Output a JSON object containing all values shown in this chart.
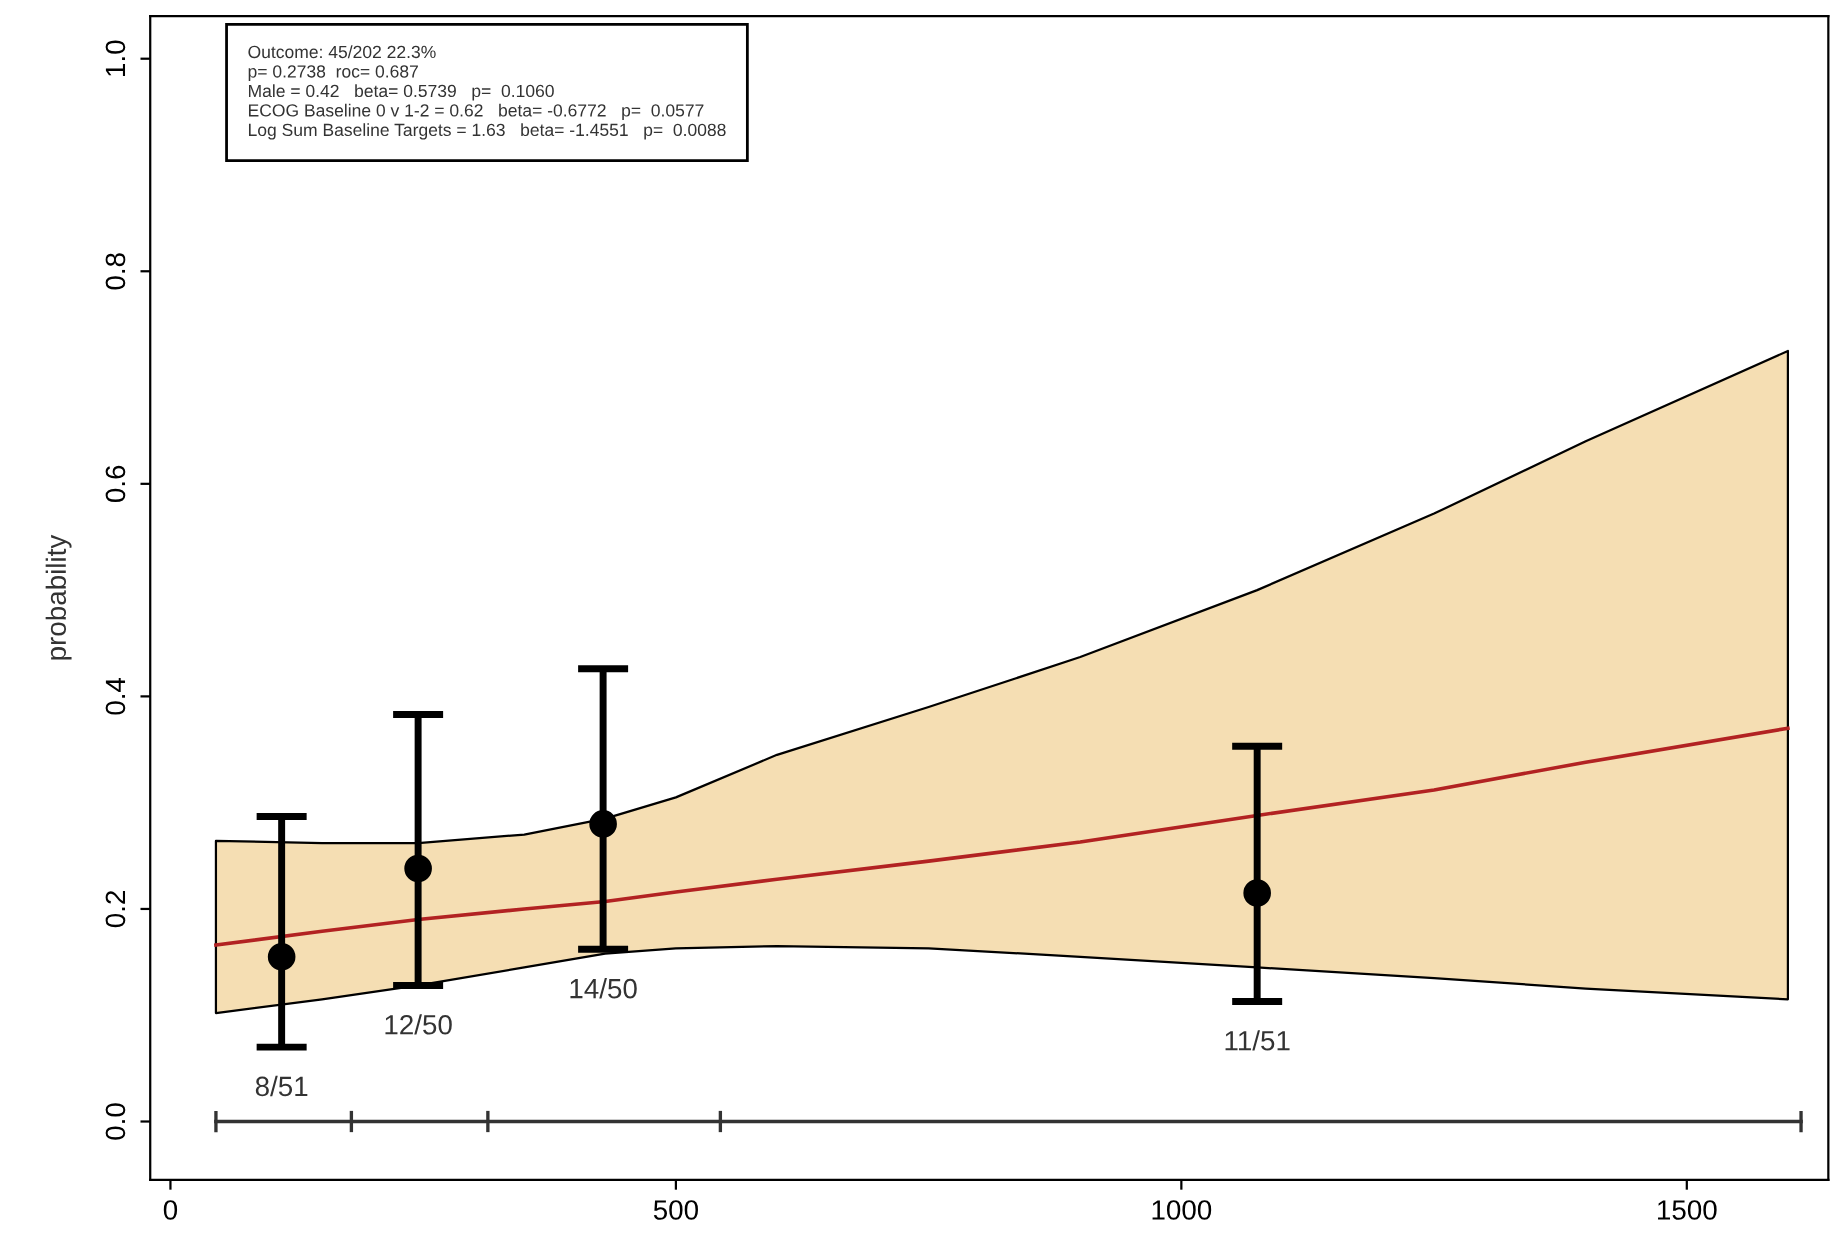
{
  "chart_data": {
    "type": "line",
    "ylabel": "probability",
    "xlim": [
      -20,
      1640
    ],
    "ylim": [
      -0.055,
      1.04
    ],
    "xticks": [
      0,
      500,
      1000,
      1500
    ],
    "yticks": [
      {
        "value": 0,
        "label": "0.0"
      },
      0.2,
      0.4,
      0.6,
      0.8,
      {
        "value": 1,
        "label": "1.0"
      }
    ],
    "series": [
      {
        "color": "#b22222",
        "x": [
          45,
          150,
          245,
          350,
          430,
          500,
          600,
          750,
          900,
          1075,
          1250,
          1400,
          1600
        ],
        "values": [
          0.166,
          0.179,
          0.19,
          0.2,
          0.207,
          0.216,
          0.228,
          0.245,
          0.263,
          0.288,
          0.312,
          0.338,
          0.37
        ],
        "lower": [
          0.102,
          0.115,
          0.128,
          0.145,
          0.158,
          0.163,
          0.165,
          0.163,
          0.155,
          0.145,
          0.135,
          0.125,
          0.115
        ],
        "upper": [
          0.264,
          0.262,
          0.262,
          0.27,
          0.285,
          0.305,
          0.345,
          0.39,
          0.437,
          0.5,
          0.572,
          0.64,
          0.725
        ]
      },
      {
        "type": "scatter",
        "color": "#000000",
        "marker": "circle",
        "x": [
          110,
          245,
          428,
          1075
        ],
        "values": [
          0.155,
          0.238,
          0.28,
          0.215
        ],
        "errors": [
          [
            0.07,
            0.287
          ],
          [
            0.128,
            0.383
          ],
          [
            0.162,
            0.426
          ],
          [
            0.113,
            0.353
          ]
        ]
      },
      {
        "type": "line",
        "color": "#333333",
        "x": [
          45,
          179,
          314,
          544,
          1613
        ],
        "values": [
          0,
          0,
          0,
          0,
          0
        ],
        "errors": [
          0.01,
          0.01,
          0.01,
          0.01,
          0.01
        ]
      }
    ],
    "annotations": [
      "8/51",
      "12/50",
      "14/50",
      "11/51",
      "Outcome: 45/202 22.3%",
      "p= 0.2738  roc= 0.687",
      "Male = 0.42   beta= 0.5739   p=  0.1060",
      "ECOG Baseline 0 v 1-2 = 0.62   beta= -0.6772   p=  0.0577",
      "Log Sum Baseline Targets = 1.63   beta= -1.4551   p=  0.0088"
    ]
  }
}
